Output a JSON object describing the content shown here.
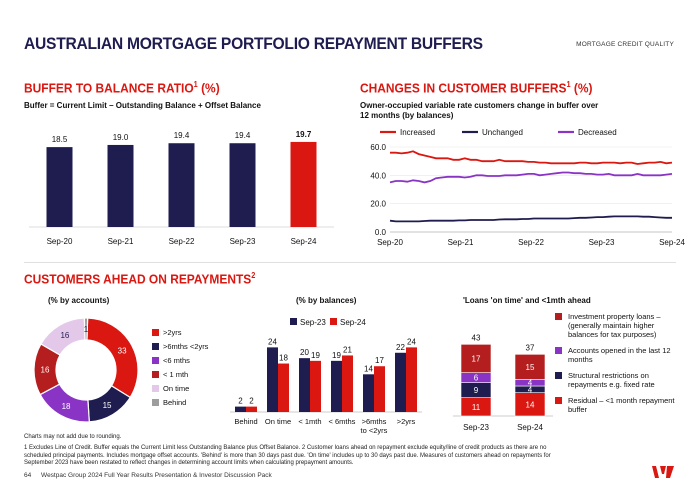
{
  "header": {
    "title": "AUSTRALIAN MORTGAGE PORTFOLIO REPAYMENT BUFFERS",
    "tag": "MORTGAGE CREDIT QUALITY"
  },
  "colors": {
    "navy": "#1f1c4f",
    "red": "#da1710",
    "darkred": "#b41e1e",
    "purple": "#8a34c6",
    "lilac": "#e4c8ea",
    "gray": "#9d9d9d"
  },
  "sections": {
    "buffer_title": "BUFFER TO BALANCE RATIO",
    "buffer_sup": "1",
    "buffer_unit": " (%)",
    "buffer_subtitle": "Buffer = Current Limit – Outstanding Balance + Offset Balance",
    "changes_title": "CHANGES IN CUSTOMER BUFFERS",
    "changes_sup": "1",
    "changes_unit": " (%)",
    "changes_subtitle_1": "Owner-occupied variable rate customers change in buffer over",
    "changes_subtitle_2": "12 months (by balances)",
    "ahead_title": "CUSTOMERS AHEAD ON REPAYMENTS",
    "ahead_sup": "2"
  },
  "chart_data": [
    {
      "id": "buffer_ratio",
      "type": "bar",
      "title": "Buffer to balance ratio (%)",
      "categories": [
        "Sep-20",
        "Sep-21",
        "Sep-22",
        "Sep-23",
        "Sep-24"
      ],
      "values": [
        18.5,
        19.0,
        19.4,
        19.4,
        19.7
      ],
      "labels": [
        "18.5",
        "19.0",
        "19.4",
        "19.4",
        "19.7"
      ],
      "ylim": [
        0,
        22
      ]
    },
    {
      "id": "changes_buffers",
      "type": "line",
      "title": "Owner-occupied variable rate customers change in buffer over 12 months (by balances)",
      "x_ticks": [
        "Sep-20",
        "Sep-21",
        "Sep-22",
        "Sep-23",
        "Sep-24"
      ],
      "y_ticks": [
        "0.0",
        "20.0",
        "40.0",
        "60.0"
      ],
      "ylim": [
        0,
        60
      ],
      "series": [
        {
          "name": "Increased",
          "color": "#da1710",
          "values": [
            56,
            56,
            55.5,
            56,
            57,
            55,
            54,
            53,
            52,
            52,
            52,
            51,
            51,
            52,
            51,
            51,
            50,
            50,
            50,
            51,
            50,
            50,
            50,
            50,
            49.5,
            49.5,
            49,
            49,
            48.5,
            48.5,
            48.5,
            48.5,
            48.5,
            49,
            49,
            48.5,
            48.5,
            49,
            49,
            49,
            48.5,
            49,
            49,
            48,
            48.5,
            49,
            49,
            49.5,
            48.5,
            49
          ]
        },
        {
          "name": "Unchanged",
          "color": "#1f1c4f",
          "values": [
            8,
            7.5,
            7.5,
            7.5,
            7.5,
            7.5,
            7.8,
            8,
            8,
            8,
            8,
            8,
            8.2,
            8.2,
            8.5,
            8.5,
            8.5,
            8.5,
            8.5,
            8.8,
            9,
            9,
            9,
            9.2,
            9.2,
            9.5,
            9.5,
            9.5,
            9.5,
            9.5,
            9.5,
            9.5,
            9.8,
            10,
            10,
            10.2,
            10.5,
            10.5,
            10.8,
            11,
            11,
            11,
            11,
            11,
            10.8,
            10.8,
            10.5,
            10.2,
            10,
            10
          ]
        },
        {
          "name": "Decreased",
          "color": "#8a34c6",
          "values": [
            35,
            36,
            36,
            35.5,
            36.5,
            36,
            35,
            36,
            38,
            38.5,
            39,
            39,
            39,
            38.5,
            39,
            40,
            40,
            39.5,
            39.5,
            39.5,
            40,
            40,
            40,
            40.5,
            41,
            41,
            40,
            40.5,
            41,
            41.5,
            42,
            42,
            41.5,
            41.5,
            41,
            41,
            40.5,
            40.5,
            41,
            40,
            40,
            40,
            40,
            41,
            40,
            40,
            40,
            40,
            40.5,
            41
          ]
        }
      ]
    },
    {
      "id": "ahead_by_accounts",
      "type": "pie",
      "title": "(% by accounts)",
      "categories": [
        ">2yrs",
        ">6mths <2yrs",
        "<6 mths",
        "< 1 mth",
        "On time",
        "Behind"
      ],
      "values": [
        33,
        15,
        18,
        16,
        16,
        1
      ],
      "labels": [
        "33",
        "15",
        "18",
        "16",
        "16",
        "1"
      ],
      "colors": [
        "#da1710",
        "#1f1c4f",
        "#8a34c6",
        "#b41e1e",
        "#e4c8ea",
        "#9d9d9d"
      ],
      "legend_colors": [
        "#da1710",
        "#1f1c4f",
        "#8a34c6",
        "#b41e1e",
        "#e4c8ea",
        "#9d9d9d"
      ]
    },
    {
      "id": "ahead_by_balances",
      "type": "bar",
      "title": "(% by balances)",
      "categories": [
        "Behind",
        "On time",
        "< 1mth",
        "< 6mths",
        ">6mths to <2yrs",
        ">2yrs"
      ],
      "category_lines": [
        [
          "Behind"
        ],
        [
          "On time"
        ],
        [
          "< 1mth"
        ],
        [
          "< 6mths"
        ],
        [
          ">6mths",
          "to <2yrs"
        ],
        [
          ">2yrs"
        ]
      ],
      "series": [
        {
          "name": "Sep-23",
          "color": "#1f1c4f",
          "values": [
            2,
            24,
            20,
            19,
            14,
            22
          ]
        },
        {
          "name": "Sep-24",
          "color": "#da1710",
          "values": [
            2,
            18,
            19,
            21,
            17,
            24
          ]
        }
      ],
      "ylim": [
        0,
        26
      ]
    },
    {
      "id": "ontime_1mth_ahead",
      "type": "bar",
      "title": "'Loans 'on time' and <1mth ahead",
      "categories": [
        "Sep-23",
        "Sep-24"
      ],
      "totals": [
        43,
        37
      ],
      "series": [
        {
          "name": "Residual – <1 month repayment buffer",
          "color": "#da1710",
          "values": [
            11,
            14
          ]
        },
        {
          "name": "Structural restrictions on repayments e.g. fixed rate",
          "color": "#1f1c4f",
          "values": [
            9,
            4
          ]
        },
        {
          "name": "Accounts opened in the last 12 months",
          "color": "#8a34c6",
          "values": [
            6,
            4
          ]
        },
        {
          "name": "Investment property loans – (generally maintain higher balances for tax purposes)",
          "color": "#b41e1e",
          "values": [
            17,
            15
          ]
        }
      ],
      "ylim": [
        0,
        45
      ]
    }
  ],
  "right_legend": [
    {
      "color": "#b41e1e",
      "text": "Investment property loans – (generally maintain higher balances for tax purposes)"
    },
    {
      "color": "#8a34c6",
      "text": "Accounts opened in the last 12 months"
    },
    {
      "color": "#1f1c4f",
      "text": "Structural restrictions on repayments e.g. fixed rate"
    },
    {
      "color": "#da1710",
      "text": "Residual – <1 month repayment buffer"
    }
  ],
  "notes": {
    "rounding": "Charts may not add due to rounding.",
    "footnote_1": "1 Excludes Line of Credit. Buffer equals the Current Limit less Outstanding Balance plus Offset Balance. 2  Customer loans ahead on repayment exclude equity/line of credit products as there are no",
    "footnote_2": "scheduled principal payments. Includes mortgage offset accounts. 'Behind' is more than 30 days past due. 'On time' includes up to 30 days past due.  Measures of customers ahead on repayments for",
    "footnote_3": "September 2023 have been restated to reflect changes in determining account limits when calculating prepayment amounts."
  },
  "footer": {
    "page": "64",
    "text": "Westpac Group 2024 Full Year Results Presentation & Investor Discussion Pack"
  }
}
